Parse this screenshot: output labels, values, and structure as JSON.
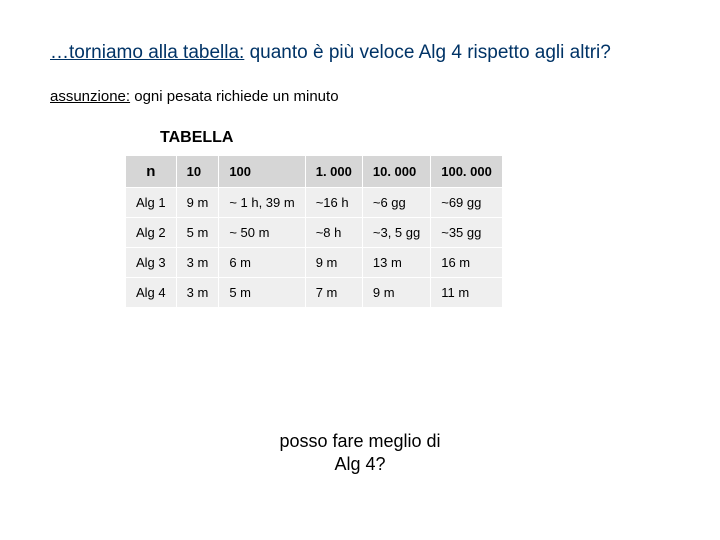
{
  "title": {
    "prefix": "…torniamo alla tabella:",
    "rest": " quanto è più veloce Alg 4 rispetto agli altri?"
  },
  "subtitle": {
    "prefix": "assunzione:",
    "rest": " ogni pesata richiede un minuto"
  },
  "tableLabel": "TABELLA",
  "header": {
    "n": "n",
    "c1": "10",
    "c2": "100",
    "c3": "1. 000",
    "c4": "10. 000",
    "c5": "100. 000"
  },
  "rows": [
    {
      "label": "Alg 1",
      "c1": "9 m",
      "c2": "~ 1 h, 39 m",
      "c3": "~16 h",
      "c4": "~6 gg",
      "c5": "~69 gg"
    },
    {
      "label": "Alg 2",
      "c1": "5 m",
      "c2": "~ 50 m",
      "c3": "~8 h",
      "c4": "~3, 5 gg",
      "c5": "~35 gg"
    },
    {
      "label": "Alg 3",
      "c1": "3 m",
      "c2": "6 m",
      "c3": "9 m",
      "c4": "13 m",
      "c5": "16 m"
    },
    {
      "label": "Alg 4",
      "c1": "3 m",
      "c2": "5 m",
      "c3": "7 m",
      "c4": "9 m",
      "c5": "11 m"
    }
  ],
  "footer": {
    "line1": "posso fare meglio di",
    "line2": "Alg 4?"
  },
  "styling": {
    "page_bg": "#ffffff",
    "title_color": "#003366",
    "text_color": "#000000",
    "header_bg": "#d6d6d6",
    "cell_bg": "#efefef",
    "border_color": "#ffffff",
    "title_fontsize": 19,
    "subtitle_fontsize": 15,
    "table_fontsize": 13,
    "footer_fontsize": 18
  }
}
